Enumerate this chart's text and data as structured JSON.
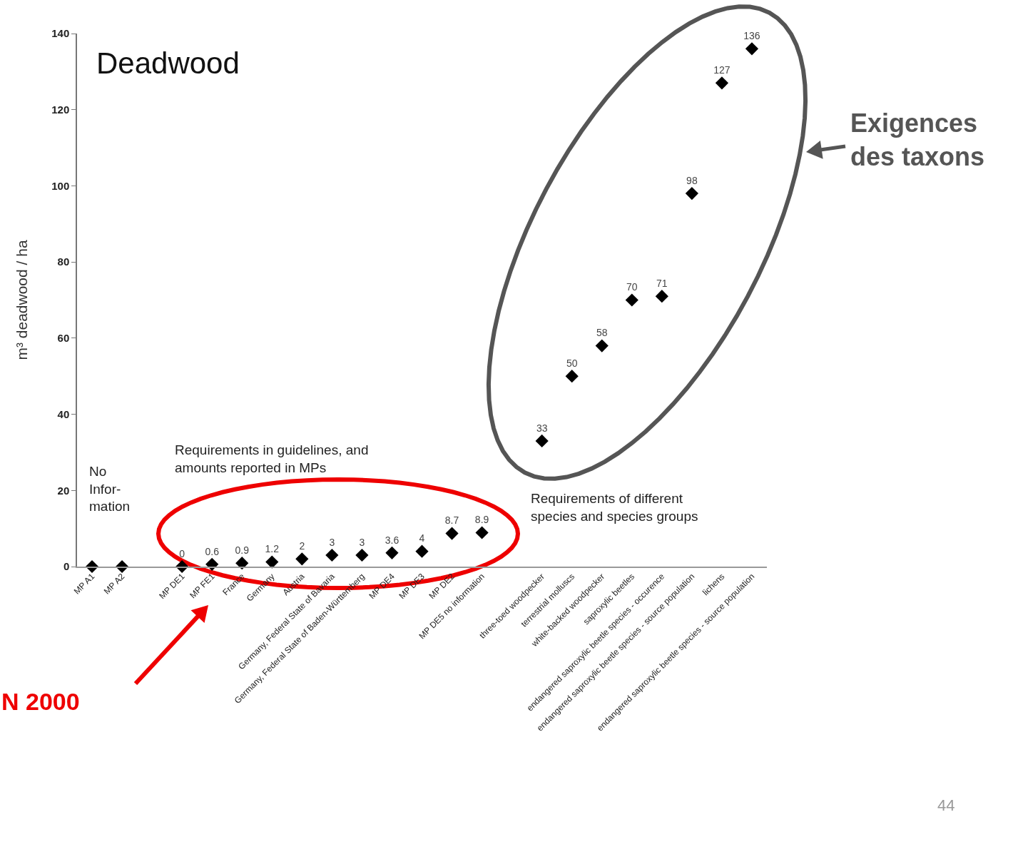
{
  "chart_data": {
    "type": "scatter",
    "title": "Deadwood",
    "ylabel": "m³ deadwood / ha",
    "categories": [
      "MP A1",
      "MP A2",
      null,
      "MP DE1",
      "MP FE1",
      "France",
      "Germany",
      "Austria",
      "Germany, Federal State of Bavaria",
      "Germany, Federal State of Baden-Württemberg",
      "MP DE4",
      "MP DE3",
      "MP DE2",
      "MP DE5 no information",
      null,
      "three-toed woodpecker",
      "terrestrial molluscs",
      "white-backed woodpecker",
      "saproxylic beetles",
      "endangered saproxylic beetle species - occurence",
      "endangered saproxylic beetle species - source population",
      "lichens",
      "endangered saproxylic beetle species - source population"
    ],
    "values": [
      0,
      0,
      null,
      0,
      0.6,
      0.9,
      1.2,
      2,
      3,
      3,
      3.6,
      4,
      8.7,
      8.9,
      null,
      33,
      50,
      58,
      70,
      71,
      98,
      127,
      136
    ],
    "value_labels": [
      null,
      null,
      null,
      "0",
      "0.6",
      "0.9",
      "1.2",
      "2",
      "3",
      "3",
      "3.6",
      "4",
      "8.7",
      "8.9",
      null,
      "33",
      "50",
      "58",
      "70",
      "71",
      "98",
      "127",
      "136"
    ],
    "color": "#000000",
    "marker": "diamond",
    "ylim": [
      0,
      140
    ],
    "yticks": [
      0,
      20,
      40,
      60,
      80,
      100,
      120,
      140
    ],
    "annotations": [
      "No\nInfor-\nmation",
      "Requirements in guidelines, and\namounts reported in MPs",
      "Requirements of different\nspecies and species groups",
      "Exigences\ndes taxons",
      "N 2000",
      "44"
    ]
  }
}
